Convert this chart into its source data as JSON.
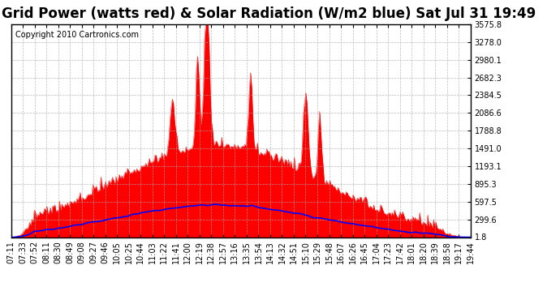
{
  "title": "Grid Power (watts red) & Solar Radiation (W/m2 blue) Sat Jul 31 19:49",
  "copyright": "Copyright 2010 Cartronics.com",
  "background_color": "#ffffff",
  "plot_bg_color": "#ffffff",
  "grid_color": "#aaaaaa",
  "yticks": [
    1.8,
    299.6,
    597.5,
    895.3,
    1193.1,
    1491.0,
    1788.8,
    2086.6,
    2384.5,
    2682.3,
    2980.1,
    3278.0,
    3575.8
  ],
  "xlabels": [
    "07:11",
    "07:33",
    "07:52",
    "08:11",
    "08:30",
    "08:49",
    "09:08",
    "09:27",
    "09:46",
    "10:05",
    "10:25",
    "10:44",
    "11:03",
    "11:22",
    "11:41",
    "12:00",
    "12:19",
    "12:38",
    "12:57",
    "13:16",
    "13:35",
    "13:54",
    "14:13",
    "14:32",
    "14:51",
    "15:10",
    "15:29",
    "15:48",
    "16:07",
    "16:26",
    "16:45",
    "17:04",
    "17:23",
    "17:42",
    "18:01",
    "18:20",
    "18:39",
    "18:58",
    "19:17",
    "19:44"
  ],
  "ymin": 1.8,
  "ymax": 3575.8,
  "red_color": "#ff0000",
  "blue_color": "#0000ff",
  "title_fontsize": 12,
  "copyright_fontsize": 7,
  "tick_fontsize": 7,
  "n_points": 400
}
